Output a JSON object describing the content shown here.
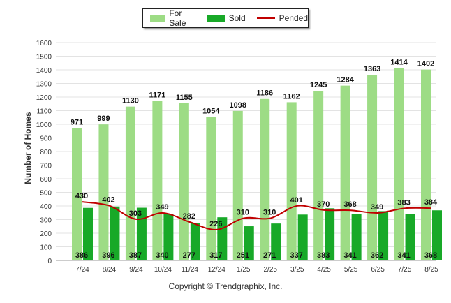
{
  "chart_data": {
    "type": "bar",
    "categories": [
      "7/24",
      "8/24",
      "9/24",
      "10/24",
      "11/24",
      "12/24",
      "1/25",
      "2/25",
      "3/25",
      "4/25",
      "5/25",
      "6/25",
      "7/25",
      "8/25"
    ],
    "series": [
      {
        "name": "For Sale",
        "type": "bar",
        "color": "#9ddc85",
        "values": [
          971,
          999,
          1130,
          1171,
          1155,
          1054,
          1098,
          1186,
          1162,
          1245,
          1284,
          1363,
          1414,
          1402
        ]
      },
      {
        "name": "Sold",
        "type": "bar",
        "color": "#18a928",
        "values": [
          386,
          396,
          387,
          340,
          277,
          317,
          251,
          271,
          337,
          383,
          341,
          362,
          341,
          368
        ]
      },
      {
        "name": "Pended",
        "type": "line",
        "color": "#c00000",
        "values": [
          430,
          402,
          303,
          349,
          282,
          226,
          310,
          310,
          401,
          370,
          368,
          349,
          383,
          384
        ]
      }
    ],
    "ylabel": "Number of Homes",
    "ylim": [
      0,
      1600
    ],
    "yticks": [
      0,
      100,
      200,
      300,
      400,
      500,
      600,
      700,
      800,
      900,
      1000,
      1100,
      1200,
      1300,
      1400,
      1500,
      1600
    ],
    "grid": true,
    "legend_position": "top-center",
    "footer": "Copyright © Trendgraphix, Inc."
  },
  "legend": {
    "for_sale": "For Sale",
    "sold": "Sold",
    "pended": "Pended"
  }
}
